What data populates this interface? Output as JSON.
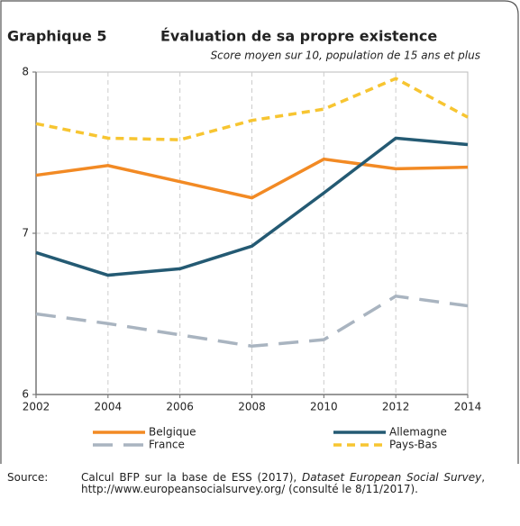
{
  "chart_data": {
    "type": "line",
    "label": "Graphique 5",
    "title": "Évaluation de sa propre existence",
    "subtitle": "Score moyen sur 10, population de 15 ans et plus",
    "x": [
      2002,
      2004,
      2006,
      2008,
      2010,
      2012,
      2014
    ],
    "xlim": [
      2002,
      2014
    ],
    "xticks": [
      2002,
      2004,
      2006,
      2008,
      2010,
      2012,
      2014
    ],
    "ylim": [
      6,
      8
    ],
    "yticks": [
      6,
      7,
      8
    ],
    "grid": true,
    "legend": "bottom",
    "series": [
      {
        "name": "Belgique",
        "color": "#f28a24",
        "dash": "solid",
        "values": [
          7.36,
          7.42,
          7.32,
          7.22,
          7.46,
          7.4,
          7.41
        ]
      },
      {
        "name": "Allemagne",
        "color": "#245a73",
        "dash": "solid",
        "values": [
          6.88,
          6.74,
          6.78,
          6.92,
          7.25,
          7.59,
          7.55
        ]
      },
      {
        "name": "France",
        "color": "#a9b4c0",
        "dash": "long",
        "values": [
          6.5,
          6.44,
          6.37,
          6.3,
          6.34,
          6.61,
          6.55
        ]
      },
      {
        "name": "Pays-Bas",
        "color": "#f7c531",
        "dash": "short",
        "values": [
          7.68,
          7.59,
          7.58,
          7.7,
          7.77,
          7.96,
          7.72
        ]
      }
    ]
  },
  "source": {
    "label": "Source:",
    "text": "Calcul BFP sur la base de ESS (2017), ",
    "italic": "Dataset European Social Survey",
    "rest": ", http://www.europeansocialsurvey.org/ (consulté le 8/11/2017)."
  }
}
